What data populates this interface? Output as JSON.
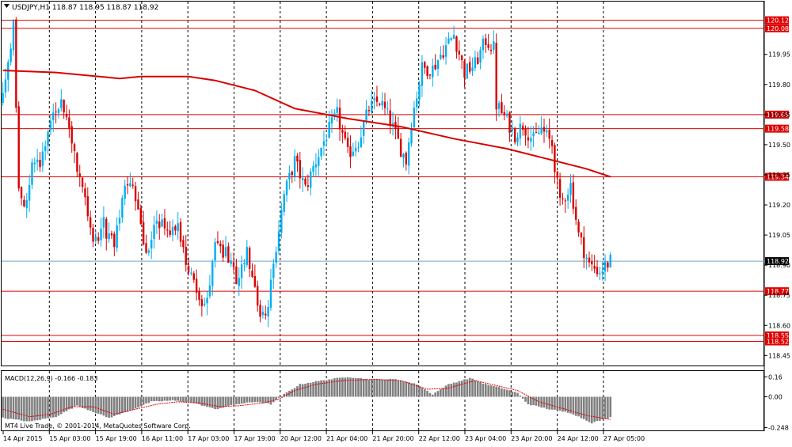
{
  "header": {
    "symbol_line": "USDJPY,H1  118.87 118.95 118.87 118.92",
    "menu_icon": "triangle-down-icon"
  },
  "indicator": {
    "label": "MACD(12,26,9) -0.166 -0.183",
    "copyright": "MT4 Live Trade, © 2001-2014, MetaQuotes Software Corp."
  },
  "colors": {
    "bull": "#00aeef",
    "bear": "#d90000",
    "ma": "#d80000",
    "level": "#e00000",
    "bid_line": "#6fa6c8",
    "grid": "#000000",
    "macd_hist": "#808080",
    "macd_signal": "#e00000"
  },
  "chart_data": [
    {
      "type": "candlestick",
      "symbol": "USDJPY",
      "timeframe": "H1",
      "ylim": [
        118.4,
        120.15
      ],
      "y_ticks": [
        "119.95",
        "119.80",
        "119.65",
        "119.50",
        "119.35",
        "119.20",
        "119.05",
        "118.90",
        "118.75",
        "118.60",
        "118.45"
      ],
      "x_ticks": [
        "14 Apr 2015",
        "15 Apr 03:00",
        "15 Apr 19:00",
        "16 Apr 11:00",
        "17 Apr 03:00",
        "17 Apr 19:00",
        "20 Apr 12:00",
        "21 Apr 04:00",
        "21 Apr 20:00",
        "22 Apr 12:00",
        "23 Apr 04:00",
        "23 Apr 20:00",
        "24 Apr 12:00",
        "27 Apr 05:00"
      ],
      "levels": [
        "120.12",
        "120.08",
        "119.65",
        "119.58",
        "119.34",
        "118.77",
        "118.55",
        "118.52"
      ],
      "current_price": "118.92",
      "anchors": [
        [
          0,
          119.72
        ],
        [
          4,
          120.08
        ],
        [
          6,
          119.3
        ],
        [
          8,
          119.18
        ],
        [
          11,
          119.4
        ],
        [
          14,
          119.42
        ],
        [
          18,
          119.6
        ],
        [
          22,
          119.7
        ],
        [
          26,
          119.5
        ],
        [
          30,
          119.3
        ],
        [
          34,
          118.98
        ],
        [
          38,
          119.1
        ],
        [
          42,
          118.98
        ],
        [
          46,
          119.32
        ],
        [
          50,
          119.25
        ],
        [
          54,
          118.95
        ],
        [
          58,
          119.12
        ],
        [
          62,
          119.08
        ],
        [
          66,
          119.1
        ],
        [
          70,
          118.88
        ],
        [
          74,
          118.72
        ],
        [
          77,
          118.7
        ],
        [
          80,
          119.05
        ],
        [
          84,
          118.95
        ],
        [
          88,
          118.82
        ],
        [
          92,
          118.98
        ],
        [
          96,
          118.7
        ],
        [
          99,
          118.62
        ],
        [
          101,
          118.8
        ],
        [
          103,
          119.0
        ],
        [
          106,
          119.25
        ],
        [
          110,
          119.42
        ],
        [
          114,
          119.28
        ],
        [
          118,
          119.42
        ],
        [
          122,
          119.55
        ],
        [
          126,
          119.65
        ],
        [
          130,
          119.45
        ],
        [
          134,
          119.52
        ],
        [
          138,
          119.68
        ],
        [
          142,
          119.72
        ],
        [
          146,
          119.62
        ],
        [
          150,
          119.48
        ],
        [
          152,
          119.42
        ],
        [
          154,
          119.62
        ],
        [
          158,
          119.88
        ],
        [
          162,
          119.88
        ],
        [
          166,
          119.97
        ],
        [
          170,
          120.05
        ],
        [
          174,
          119.86
        ],
        [
          178,
          119.9
        ],
        [
          182,
          120.02
        ],
        [
          185,
          119.98
        ],
        [
          186,
          119.7
        ],
        [
          190,
          119.62
        ],
        [
          193,
          119.55
        ],
        [
          196,
          119.6
        ],
        [
          200,
          119.52
        ],
        [
          203,
          119.58
        ],
        [
          207,
          119.5
        ],
        [
          210,
          119.2
        ],
        [
          214,
          119.3
        ],
        [
          217,
          119.05
        ],
        [
          221,
          118.9
        ],
        [
          225,
          118.87
        ],
        [
          229,
          118.92
        ]
      ],
      "ma": [
        [
          0,
          119.87
        ],
        [
          20,
          119.86
        ],
        [
          44,
          119.83
        ],
        [
          52,
          119.84
        ],
        [
          70,
          119.84
        ],
        [
          80,
          119.82
        ],
        [
          95,
          119.77
        ],
        [
          110,
          119.68
        ],
        [
          130,
          119.63
        ],
        [
          150,
          119.59
        ],
        [
          170,
          119.53
        ],
        [
          190,
          119.48
        ],
        [
          205,
          119.43
        ],
        [
          220,
          119.38
        ],
        [
          229,
          119.34
        ]
      ]
    },
    {
      "type": "bar",
      "name": "MACD(12,26,9)",
      "ylim": [
        -0.27,
        0.2
      ],
      "y_ticks": [
        "0.16",
        "0.00",
        "-0.248"
      ],
      "hist_anchors": [
        [
          0,
          -0.17
        ],
        [
          10,
          -0.2
        ],
        [
          20,
          -0.16
        ],
        [
          28,
          -0.07
        ],
        [
          34,
          -0.12
        ],
        [
          40,
          -0.17
        ],
        [
          48,
          -0.11
        ],
        [
          56,
          -0.04
        ],
        [
          64,
          -0.03
        ],
        [
          72,
          -0.05
        ],
        [
          80,
          -0.1
        ],
        [
          88,
          -0.06
        ],
        [
          96,
          -0.04
        ],
        [
          101,
          -0.06
        ],
        [
          106,
          0.02
        ],
        [
          112,
          0.1
        ],
        [
          120,
          0.13
        ],
        [
          130,
          0.16
        ],
        [
          138,
          0.14
        ],
        [
          148,
          0.14
        ],
        [
          156,
          0.1
        ],
        [
          162,
          0.02
        ],
        [
          168,
          0.1
        ],
        [
          176,
          0.15
        ],
        [
          182,
          0.1
        ],
        [
          188,
          0.07
        ],
        [
          194,
          0.03
        ],
        [
          198,
          -0.06
        ],
        [
          206,
          -0.1
        ],
        [
          214,
          -0.13
        ],
        [
          222,
          -0.21
        ],
        [
          229,
          -0.166
        ]
      ],
      "signal_anchors": [
        [
          0,
          -0.1
        ],
        [
          10,
          -0.16
        ],
        [
          18,
          -0.14
        ],
        [
          26,
          -0.08
        ],
        [
          34,
          -0.08
        ],
        [
          42,
          -0.14
        ],
        [
          50,
          -0.1
        ],
        [
          58,
          -0.06
        ],
        [
          66,
          -0.04
        ],
        [
          74,
          -0.05
        ],
        [
          82,
          -0.08
        ],
        [
          90,
          -0.07
        ],
        [
          98,
          -0.05
        ],
        [
          104,
          -0.02
        ],
        [
          110,
          0.05
        ],
        [
          118,
          0.1
        ],
        [
          128,
          0.13
        ],
        [
          140,
          0.14
        ],
        [
          150,
          0.13
        ],
        [
          160,
          0.06
        ],
        [
          168,
          0.07
        ],
        [
          178,
          0.13
        ],
        [
          186,
          0.09
        ],
        [
          194,
          0.05
        ],
        [
          202,
          -0.04
        ],
        [
          212,
          -0.1
        ],
        [
          220,
          -0.15
        ],
        [
          229,
          -0.183
        ]
      ]
    }
  ]
}
